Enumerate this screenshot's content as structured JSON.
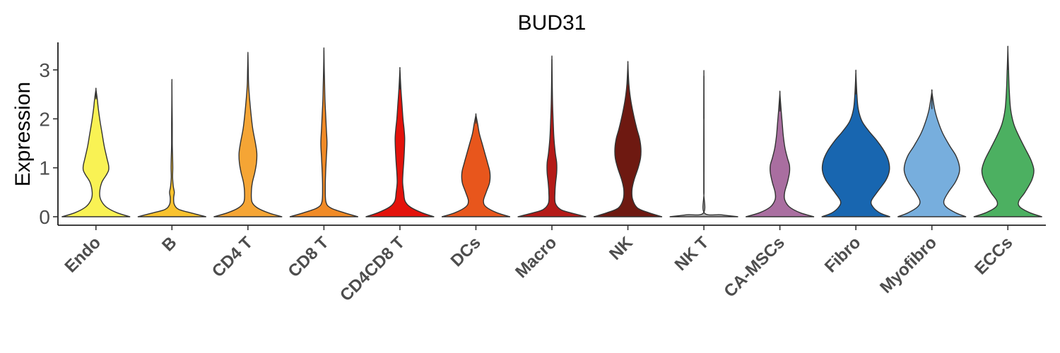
{
  "chart_data": {
    "type": "violin",
    "title": "BUD31",
    "xlabel": "",
    "ylabel": "Expression",
    "ylim": [
      -0.15,
      3.6
    ],
    "yticks": [
      0,
      1,
      2,
      3
    ],
    "grid": false,
    "legend": "none",
    "categories": [
      "Endo",
      "B",
      "CD4 T",
      "CD8 T",
      "CD4CD8 T",
      "DCs",
      "Macro",
      "NK",
      "NK T",
      "CA-MSCs",
      "Fibro",
      "Myofibro",
      "ECCs"
    ],
    "colors": [
      "#F9F254",
      "#F9C22E",
      "#F5A535",
      "#F08A26",
      "#E3120B",
      "#E8561C",
      "#B41A17",
      "#6E1911",
      "#B0B0B0",
      "#A96EA0",
      "#1866B0",
      "#77AEDD",
      "#4CB061"
    ],
    "max_values": [
      2.6,
      2.75,
      3.32,
      3.4,
      3.0,
      2.08,
      3.22,
      3.12,
      2.88,
      2.52,
      2.94,
      2.55,
      3.43
    ],
    "densities": [
      [
        [
          0,
          1.0
        ],
        [
          0.08,
          0.62
        ],
        [
          0.2,
          0.3
        ],
        [
          0.35,
          0.14
        ],
        [
          0.5,
          0.11
        ],
        [
          0.7,
          0.17
        ],
        [
          0.85,
          0.3
        ],
        [
          0.95,
          0.37
        ],
        [
          1.05,
          0.37
        ],
        [
          1.2,
          0.32
        ],
        [
          1.45,
          0.24
        ],
        [
          1.7,
          0.18
        ],
        [
          1.95,
          0.12
        ],
        [
          2.2,
          0.07
        ],
        [
          2.4,
          0.04
        ],
        [
          2.6,
          0.0
        ]
      ],
      [
        [
          0,
          1.0
        ],
        [
          0.08,
          0.55
        ],
        [
          0.15,
          0.2
        ],
        [
          0.25,
          0.07
        ],
        [
          0.38,
          0.05
        ],
        [
          0.5,
          0.07
        ],
        [
          0.62,
          0.04
        ],
        [
          0.8,
          0.02
        ],
        [
          1.0,
          0.025
        ],
        [
          1.2,
          0.02
        ],
        [
          1.5,
          0.01
        ],
        [
          1.9,
          0.01
        ],
        [
          2.3,
          0.004
        ],
        [
          2.75,
          0.0
        ]
      ],
      [
        [
          0,
          1.0
        ],
        [
          0.08,
          0.6
        ],
        [
          0.18,
          0.28
        ],
        [
          0.3,
          0.12
        ],
        [
          0.5,
          0.1
        ],
        [
          0.7,
          0.13
        ],
        [
          0.9,
          0.2
        ],
        [
          1.1,
          0.25
        ],
        [
          1.3,
          0.26
        ],
        [
          1.5,
          0.22
        ],
        [
          1.8,
          0.14
        ],
        [
          2.1,
          0.09
        ],
        [
          2.4,
          0.05
        ],
        [
          2.7,
          0.02
        ],
        [
          3.0,
          0.01
        ],
        [
          3.32,
          0.0
        ]
      ],
      [
        [
          0,
          1.0
        ],
        [
          0.08,
          0.6
        ],
        [
          0.18,
          0.2
        ],
        [
          0.3,
          0.06
        ],
        [
          0.6,
          0.04
        ],
        [
          0.9,
          0.05
        ],
        [
          1.2,
          0.07
        ],
        [
          1.5,
          0.09
        ],
        [
          1.8,
          0.07
        ],
        [
          2.1,
          0.05
        ],
        [
          2.4,
          0.03
        ],
        [
          2.7,
          0.02
        ],
        [
          3.0,
          0.01
        ],
        [
          3.4,
          0.0
        ]
      ],
      [
        [
          0,
          1.0
        ],
        [
          0.08,
          0.65
        ],
        [
          0.2,
          0.3
        ],
        [
          0.32,
          0.15
        ],
        [
          0.5,
          0.11
        ],
        [
          0.7,
          0.08
        ],
        [
          0.9,
          0.09
        ],
        [
          1.1,
          0.11
        ],
        [
          1.35,
          0.13
        ],
        [
          1.6,
          0.14
        ],
        [
          1.8,
          0.12
        ],
        [
          2.0,
          0.09
        ],
        [
          2.3,
          0.06
        ],
        [
          2.6,
          0.03
        ],
        [
          3.0,
          0.0
        ]
      ],
      [
        [
          0,
          1.0
        ],
        [
          0.08,
          0.62
        ],
        [
          0.2,
          0.3
        ],
        [
          0.32,
          0.22
        ],
        [
          0.5,
          0.3
        ],
        [
          0.7,
          0.4
        ],
        [
          0.9,
          0.41
        ],
        [
          1.1,
          0.34
        ],
        [
          1.3,
          0.26
        ],
        [
          1.5,
          0.18
        ],
        [
          1.7,
          0.1
        ],
        [
          1.9,
          0.05
        ],
        [
          2.08,
          0.0
        ]
      ],
      [
        [
          0,
          1.0
        ],
        [
          0.08,
          0.55
        ],
        [
          0.15,
          0.25
        ],
        [
          0.28,
          0.1
        ],
        [
          0.5,
          0.09
        ],
        [
          0.7,
          0.11
        ],
        [
          0.9,
          0.14
        ],
        [
          1.1,
          0.14
        ],
        [
          1.3,
          0.1
        ],
        [
          1.6,
          0.06
        ],
        [
          1.9,
          0.04
        ],
        [
          2.3,
          0.02
        ],
        [
          2.7,
          0.01
        ],
        [
          3.22,
          0.0
        ]
      ],
      [
        [
          0,
          1.0
        ],
        [
          0.08,
          0.62
        ],
        [
          0.18,
          0.28
        ],
        [
          0.35,
          0.14
        ],
        [
          0.55,
          0.12
        ],
        [
          0.75,
          0.18
        ],
        [
          1.0,
          0.3
        ],
        [
          1.2,
          0.37
        ],
        [
          1.4,
          0.38
        ],
        [
          1.6,
          0.34
        ],
        [
          1.8,
          0.26
        ],
        [
          2.1,
          0.16
        ],
        [
          2.4,
          0.08
        ],
        [
          2.7,
          0.03
        ],
        [
          3.12,
          0.0
        ]
      ],
      [
        [
          0,
          1.0
        ],
        [
          0.04,
          0.5
        ],
        [
          0.08,
          0.01
        ],
        [
          0.5,
          0.004
        ],
        [
          1.0,
          0.004
        ],
        [
          1.5,
          0.004
        ],
        [
          2.0,
          0.003
        ],
        [
          2.88,
          0.0
        ]
      ],
      [
        [
          0,
          1.0
        ],
        [
          0.08,
          0.6
        ],
        [
          0.2,
          0.28
        ],
        [
          0.35,
          0.14
        ],
        [
          0.5,
          0.14
        ],
        [
          0.7,
          0.22
        ],
        [
          0.9,
          0.28
        ],
        [
          1.05,
          0.28
        ],
        [
          1.2,
          0.22
        ],
        [
          1.4,
          0.15
        ],
        [
          1.65,
          0.1
        ],
        [
          1.9,
          0.07
        ],
        [
          2.15,
          0.04
        ],
        [
          2.52,
          0.0
        ]
      ],
      [
        [
          0,
          1.0
        ],
        [
          0.08,
          0.7
        ],
        [
          0.2,
          0.5
        ],
        [
          0.32,
          0.45
        ],
        [
          0.5,
          0.62
        ],
        [
          0.75,
          0.88
        ],
        [
          0.95,
          0.98
        ],
        [
          1.15,
          0.95
        ],
        [
          1.35,
          0.82
        ],
        [
          1.55,
          0.62
        ],
        [
          1.75,
          0.38
        ],
        [
          1.95,
          0.18
        ],
        [
          2.2,
          0.07
        ],
        [
          2.5,
          0.03
        ],
        [
          2.94,
          0.0
        ]
      ],
      [
        [
          0,
          1.0
        ],
        [
          0.08,
          0.7
        ],
        [
          0.2,
          0.42
        ],
        [
          0.32,
          0.35
        ],
        [
          0.5,
          0.48
        ],
        [
          0.7,
          0.68
        ],
        [
          0.9,
          0.8
        ],
        [
          1.05,
          0.8
        ],
        [
          1.25,
          0.7
        ],
        [
          1.45,
          0.52
        ],
        [
          1.7,
          0.32
        ],
        [
          1.95,
          0.18
        ],
        [
          2.2,
          0.08
        ],
        [
          2.55,
          0.0
        ]
      ],
      [
        [
          0,
          1.0
        ],
        [
          0.08,
          0.65
        ],
        [
          0.2,
          0.35
        ],
        [
          0.32,
          0.32
        ],
        [
          0.5,
          0.5
        ],
        [
          0.75,
          0.7
        ],
        [
          0.95,
          0.76
        ],
        [
          1.15,
          0.68
        ],
        [
          1.4,
          0.5
        ],
        [
          1.65,
          0.32
        ],
        [
          1.9,
          0.17
        ],
        [
          2.2,
          0.08
        ],
        [
          2.6,
          0.04
        ],
        [
          3.0,
          0.02
        ],
        [
          3.43,
          0.0
        ]
      ]
    ]
  }
}
